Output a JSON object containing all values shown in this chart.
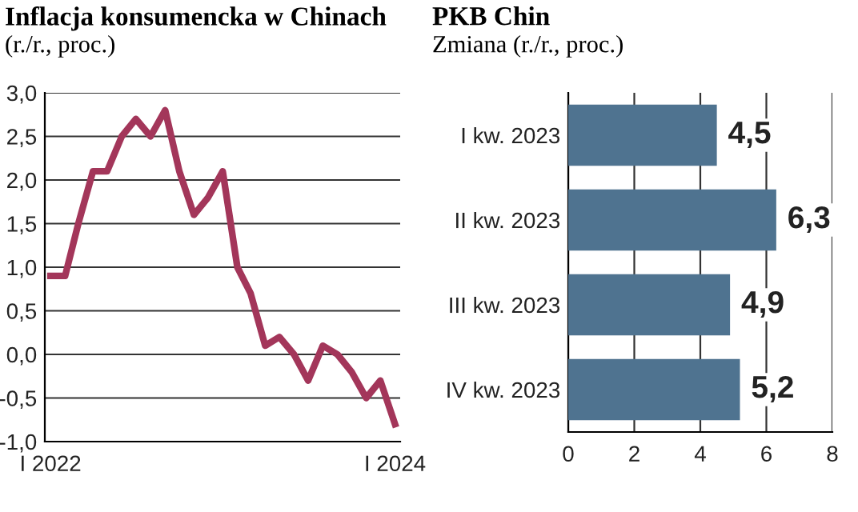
{
  "chart_data": [
    {
      "type": "line",
      "title": "Inflacja konsumencka w Chinach",
      "subtitle": "(r./r., proc.)",
      "x": [
        "2022-01",
        "2022-02",
        "2022-03",
        "2022-04",
        "2022-05",
        "2022-06",
        "2022-07",
        "2022-08",
        "2022-09",
        "2022-10",
        "2022-11",
        "2022-12",
        "2023-01",
        "2023-02",
        "2023-03",
        "2023-04",
        "2023-05",
        "2023-06",
        "2023-07",
        "2023-08",
        "2023-09",
        "2023-10",
        "2023-11",
        "2023-12",
        "2024-01"
      ],
      "series": [
        {
          "color": "#a3365a",
          "values": [
            0.9,
            0.9,
            1.5,
            2.1,
            2.1,
            2.5,
            2.7,
            2.5,
            2.8,
            2.1,
            1.6,
            1.8,
            2.1,
            1.0,
            0.7,
            0.1,
            0.2,
            0.0,
            -0.3,
            0.1,
            0.0,
            -0.2,
            -0.5,
            -0.3,
            -0.8
          ]
        }
      ],
      "xlim": [
        "2021-12-20",
        "2024-01-12"
      ],
      "xticks": [
        {
          "value": "2022-01",
          "label": "I 2022"
        },
        {
          "value": "2024-01",
          "label": "I 2024"
        }
      ],
      "ylim": [
        -1.0,
        3.0
      ],
      "yticks": [
        {
          "value": -1.0,
          "label": "-1,0"
        },
        {
          "value": -0.5,
          "label": "-0,5"
        },
        {
          "value": 0.0,
          "label": "0,0"
        },
        {
          "value": 0.5,
          "label": "0,5"
        },
        {
          "value": 1.0,
          "label": "1,0"
        },
        {
          "value": 1.5,
          "label": "1,5"
        },
        {
          "value": 2.0,
          "label": "2,0"
        },
        {
          "value": 2.5,
          "label": "2,5"
        },
        {
          "value": 3.0,
          "label": "3,0"
        }
      ],
      "grid": "y",
      "marker": "none",
      "line_style": "solid"
    },
    {
      "type": "bar",
      "orientation": "horizontal",
      "title": "PKB Chin",
      "subtitle": "Zmiana (r./r., proc.)",
      "categories": [
        "I kw. 2023",
        "II kw. 2023",
        "III kw. 2023",
        "IV kw. 2023"
      ],
      "series": [
        {
          "color": "#4f7390",
          "values": [
            4.5,
            6.3,
            4.9,
            5.2
          ]
        }
      ],
      "value_labels": [
        "4,5",
        "6,3",
        "4,9",
        "5,2"
      ],
      "xlim": [
        0,
        8
      ],
      "xticks": [
        0,
        2,
        4,
        6,
        8
      ],
      "grid": "x"
    }
  ]
}
